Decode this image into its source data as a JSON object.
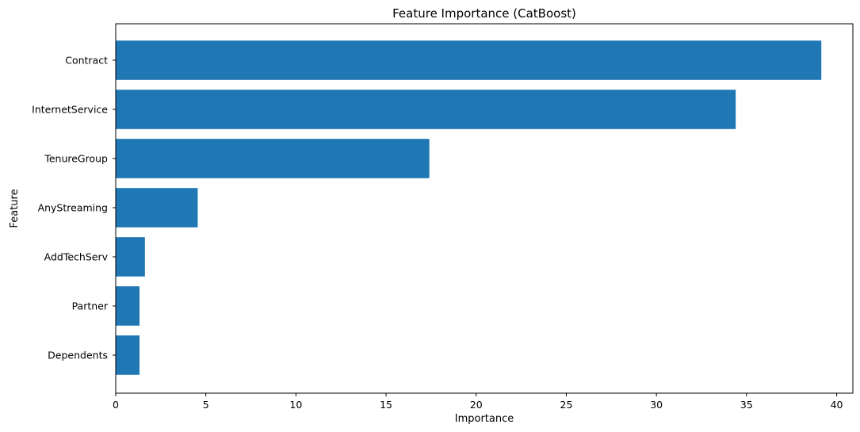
{
  "chart_data": {
    "type": "bar",
    "orientation": "horizontal",
    "title": "Feature Importance (CatBoost)",
    "xlabel": "Importance",
    "ylabel": "Feature",
    "categories": [
      "Contract",
      "InternetService",
      "TenureGroup",
      "AnyStreaming",
      "AddTechServ",
      "Partner",
      "Dependents"
    ],
    "values": [
      39.15,
      34.4,
      17.4,
      4.55,
      1.62,
      1.32,
      1.32
    ],
    "xlim": [
      0,
      40.9
    ],
    "xticks": [
      0,
      5,
      10,
      15,
      20,
      25,
      30,
      35,
      40
    ],
    "grid": false,
    "legend": "none",
    "colors": {
      "bar": "#1f77b4",
      "axis": "#000000"
    }
  }
}
